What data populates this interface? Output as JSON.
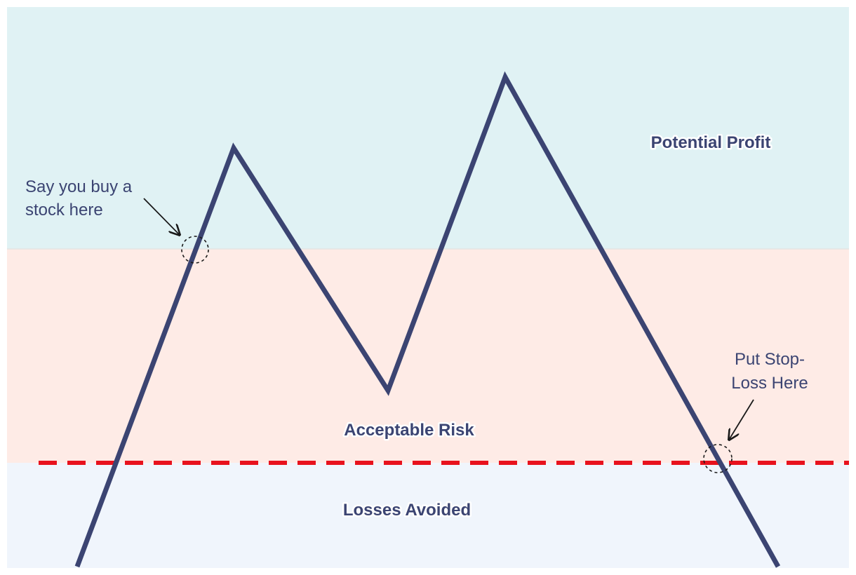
{
  "zones": {
    "top": {
      "label": "Potential Profit",
      "color": "#e0f2f4"
    },
    "middle": {
      "label": "Acceptable Risk",
      "color": "#feebe6"
    },
    "bottom": {
      "label": "Losses Avoided",
      "color": "#f0f5fc"
    }
  },
  "annotations": {
    "buy": {
      "line1": "Say you buy a",
      "line2": "stock here"
    },
    "stop_loss": {
      "line1": "Put Stop-",
      "line2": "Loss Here"
    }
  },
  "colors": {
    "price_line": "#3b4472",
    "stop_loss_line": "#e8121d",
    "zone_border": "#e4e4e4",
    "annotation": "#1a1a1a"
  }
}
